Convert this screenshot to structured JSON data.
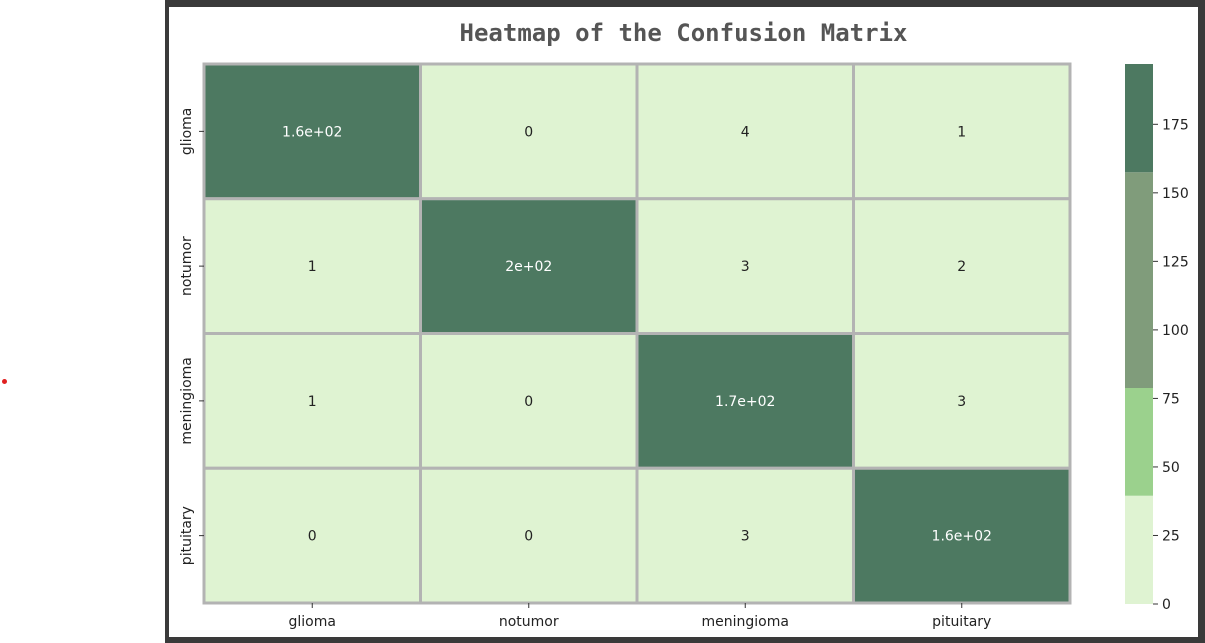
{
  "chart_data": {
    "type": "heatmap",
    "title": "Heatmap of the Confusion Matrix",
    "x_labels": [
      "glioma",
      "notumor",
      "meningioma",
      "pituitary"
    ],
    "y_labels": [
      "glioma",
      "notumor",
      "meningioma",
      "pituitary"
    ],
    "values": [
      [
        160,
        0,
        4,
        1
      ],
      [
        1,
        200,
        3,
        2
      ],
      [
        1,
        0,
        170,
        3
      ],
      [
        0,
        0,
        3,
        160
      ]
    ],
    "annotations": [
      [
        "1.6e+02",
        "0",
        "4",
        "1"
      ],
      [
        "1",
        "2e+02",
        "3",
        "2"
      ],
      [
        "1",
        "0",
        "1.7e+02",
        "3"
      ],
      [
        "0",
        "0",
        "3",
        "1.6e+02"
      ]
    ],
    "colorbar": {
      "range": [
        0,
        197
      ],
      "ticks": [
        0,
        25,
        50,
        75,
        100,
        125,
        150,
        175
      ],
      "bands": [
        {
          "from": 0,
          "to": 39.5,
          "color": "#dff3d2"
        },
        {
          "from": 39.5,
          "to": 78.8,
          "color": "#9bd18d"
        },
        {
          "from": 78.8,
          "to": 157.5,
          "color": "#809c7b"
        },
        {
          "from": 157.5,
          "to": 197,
          "color": "#4d7961"
        }
      ]
    },
    "grid_line_color": "#b3b3b3",
    "text_color_dark": "#222222",
    "text_color_light": "#ffffff"
  }
}
